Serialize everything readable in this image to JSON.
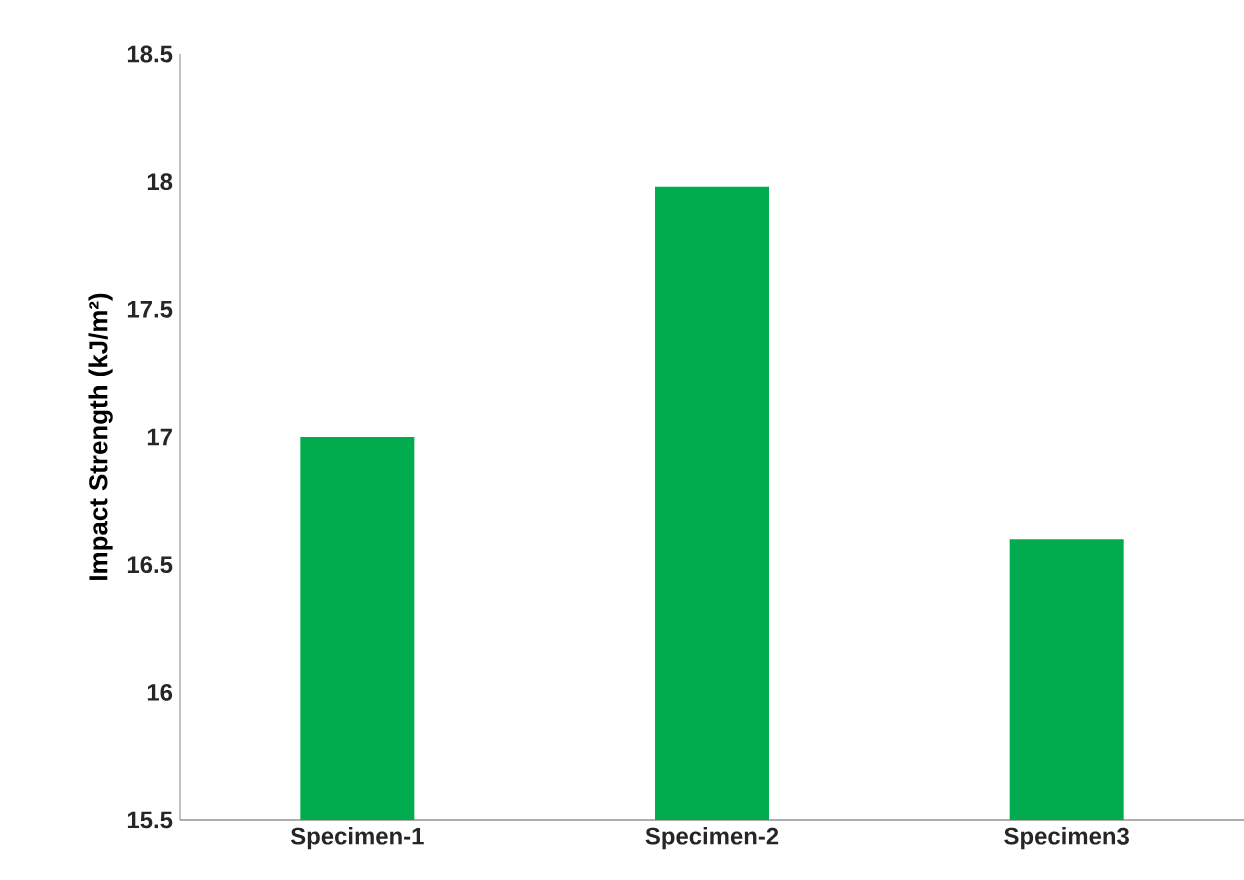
{
  "chart_data": {
    "type": "bar",
    "ylabel": "Impact Strength (kJ/m²)",
    "categories": [
      "Specimen-1",
      "Specimen-2",
      "Specimen3"
    ],
    "values": [
      17.0,
      17.98,
      16.6
    ],
    "color": "#00ac4e",
    "ylim": [
      15.5,
      18.5
    ],
    "yticks": [
      15.5,
      16,
      16.5,
      17,
      17.5,
      18,
      18.5
    ],
    "grid": false
  }
}
